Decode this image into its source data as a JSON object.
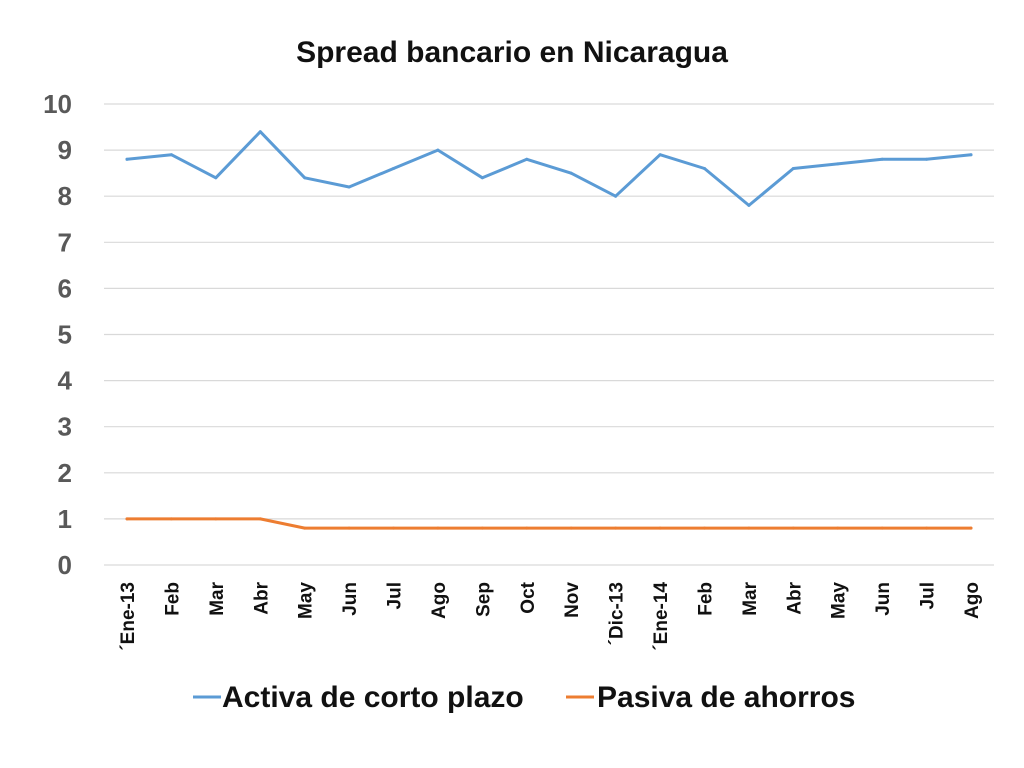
{
  "chart_data": {
    "type": "line",
    "title": "Spread bancario en Nicaragua",
    "xlabel": "",
    "ylabel": "",
    "ylim": [
      0,
      10
    ],
    "yticks": [
      0,
      1,
      2,
      3,
      4,
      5,
      6,
      7,
      8,
      9,
      10
    ],
    "grid": true,
    "legend_position": "bottom",
    "categories": [
      "´Ene-13",
      "Feb",
      "Mar",
      "Abr",
      "May",
      "Jun",
      "Jul",
      "Ago",
      "Sep",
      "Oct",
      "Nov",
      "´Dic-13",
      "´Ene-14",
      "Feb",
      "Mar",
      "Abr",
      "May",
      "Jun",
      "Jul",
      "Ago"
    ],
    "series": [
      {
        "name": "Activa de corto plazo",
        "color": "#5B9BD5",
        "values": [
          8.8,
          8.9,
          8.4,
          9.4,
          8.4,
          8.2,
          8.6,
          9.0,
          8.4,
          8.8,
          8.5,
          8.0,
          8.9,
          8.6,
          7.8,
          8.6,
          8.7,
          8.8,
          8.8,
          8.9
        ]
      },
      {
        "name": "Pasiva de ahorros",
        "color": "#ED7D31",
        "values": [
          1.0,
          1.0,
          1.0,
          1.0,
          0.8,
          0.8,
          0.8,
          0.8,
          0.8,
          0.8,
          0.8,
          0.8,
          0.8,
          0.8,
          0.8,
          0.8,
          0.8,
          0.8,
          0.8,
          0.8
        ]
      }
    ]
  }
}
